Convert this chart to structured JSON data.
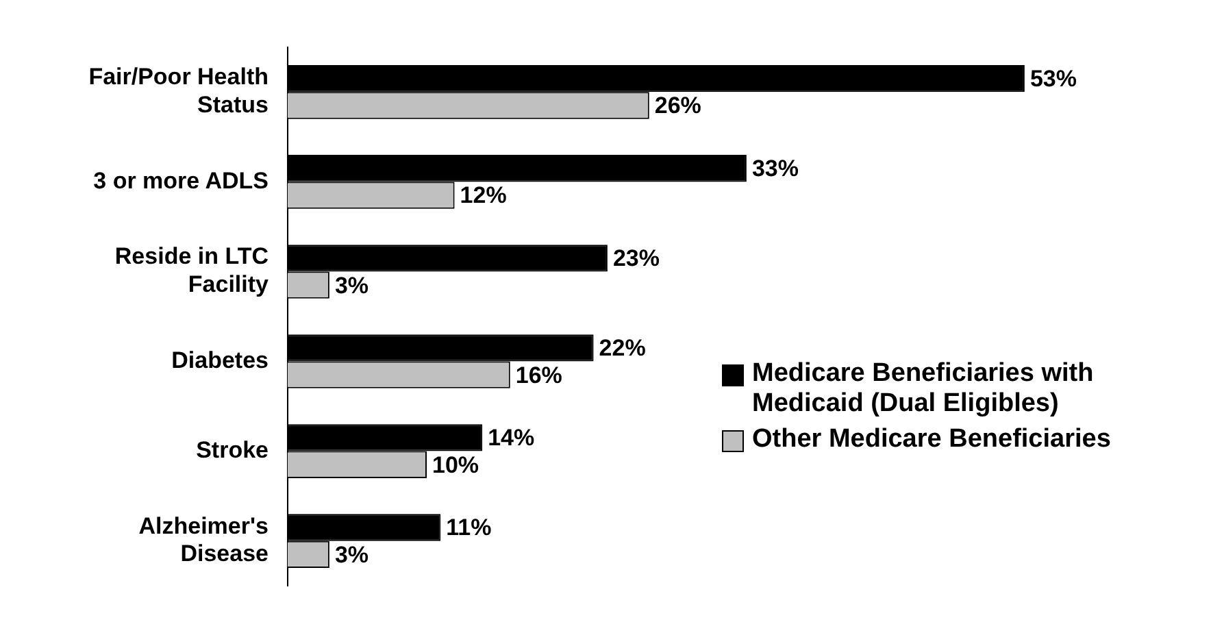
{
  "chart_data": {
    "type": "bar",
    "orientation": "horizontal",
    "categories": [
      "Fair/Poor Health Status",
      "3 or more ADLS",
      "Reside in LTC Facility",
      "Diabetes",
      "Stroke",
      "Alzheimer's Disease"
    ],
    "series": [
      {
        "name": "Medicare Beneficiaries with Medicaid (Dual Eligibles)",
        "color": "#000000",
        "values": [
          53,
          33,
          23,
          22,
          14,
          11
        ],
        "value_labels": [
          "53%",
          "33%",
          "23%",
          "22%",
          "14%",
          "11%"
        ]
      },
      {
        "name": "Other Medicare Beneficiaries",
        "color": "#c0c0c0",
        "values": [
          26,
          12,
          3,
          16,
          10,
          3
        ],
        "value_labels": [
          "26%",
          "12%",
          "3%",
          "16%",
          "10%",
          "3%"
        ]
      }
    ],
    "tick_labels": "y",
    "grid": false,
    "legend": "right"
  }
}
